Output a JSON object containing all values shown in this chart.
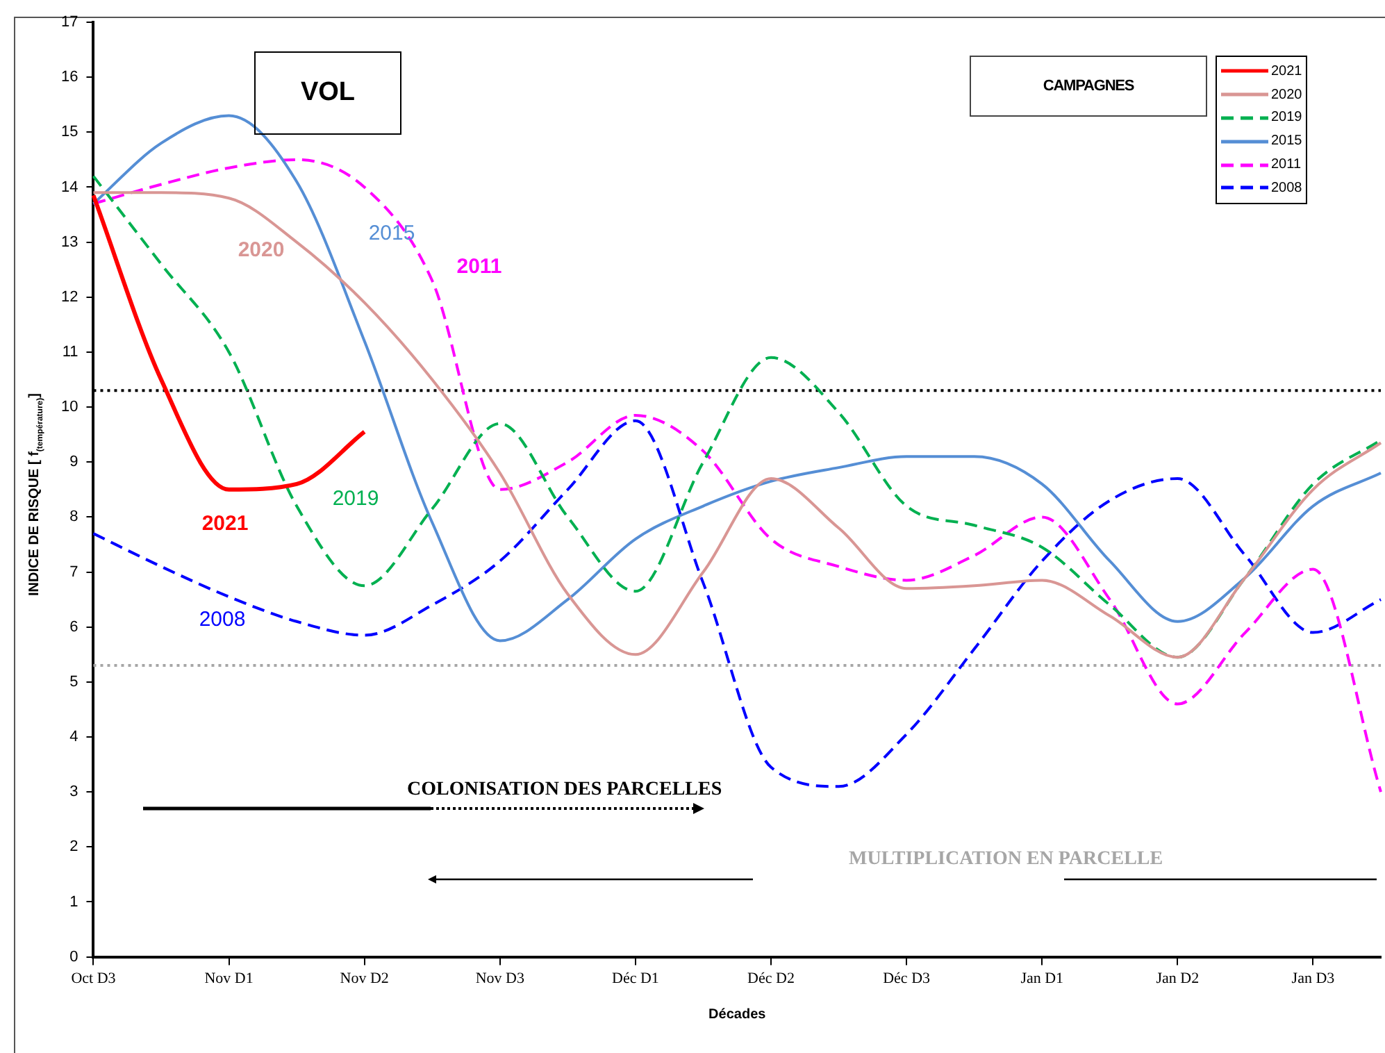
{
  "chart_data": {
    "type": "line",
    "xlabel": "Décades",
    "ylabel": "INDICE DE RISQUE [ f$_{(température)}$]",
    "legend_title": "CAMPAGNES",
    "legend": "top right",
    "grid": false,
    "marker": "none",
    "categories": [
      "Oct D3",
      null,
      "Nov D1",
      null,
      "Nov D2",
      null,
      "Nov D3",
      null,
      "Déc D1",
      null,
      "Déc D2",
      null,
      "Déc D3",
      null,
      "Jan D1",
      null,
      "Jan D2",
      null,
      "Jan D3",
      null
    ],
    "ylim": [
      0,
      17
    ],
    "yticks": [
      0,
      1,
      2,
      3,
      4,
      5,
      6,
      7,
      8,
      9,
      10,
      11,
      12,
      13,
      14,
      15,
      16,
      17
    ],
    "series": [
      {
        "name": "2021",
        "color": "#ff0000",
        "line_style": "solid",
        "values": [
          13.85,
          10.5,
          8.5,
          8.6,
          9.55,
          null,
          null,
          null,
          null,
          null,
          null,
          null,
          null,
          null,
          null,
          null,
          null,
          null,
          null,
          null
        ]
      },
      {
        "name": "2020",
        "color": "#d99694",
        "line_style": "solid",
        "values": [
          13.9,
          13.9,
          13.8,
          13.0,
          11.9,
          10.5,
          8.8,
          6.6,
          5.5,
          7.0,
          8.7,
          7.8,
          6.7,
          6.75,
          6.85,
          6.2,
          5.45,
          6.9,
          8.5,
          9.35
        ]
      },
      {
        "name": "2019",
        "color": "#00b050",
        "line_style": "dashed",
        "values": [
          14.2,
          12.6,
          11.0,
          8.2,
          6.75,
          8.15,
          9.7,
          8.0,
          6.65,
          9.0,
          10.9,
          9.9,
          8.2,
          7.85,
          7.45,
          6.4,
          5.45,
          6.9,
          8.6,
          9.4
        ]
      },
      {
        "name": "2015",
        "color": "#558ed5",
        "line_style": "solid",
        "values": [
          13.7,
          14.8,
          15.3,
          14.1,
          11.2,
          7.9,
          5.75,
          6.5,
          7.6,
          8.2,
          8.65,
          8.9,
          9.1,
          9.1,
          8.6,
          7.2,
          6.1,
          6.9,
          8.2,
          8.8
        ]
      },
      {
        "name": "2011",
        "color": "#ff00ff",
        "line_style": "dashed",
        "values": [
          13.7,
          14.05,
          14.35,
          14.5,
          14.0,
          12.3,
          8.5,
          9.0,
          9.85,
          9.2,
          7.6,
          7.1,
          6.85,
          7.3,
          8.0,
          6.5,
          4.6,
          5.9,
          7.05,
          3.0
        ]
      },
      {
        "name": "2008",
        "color": "#0000ff",
        "line_style": "dashed",
        "values": [
          7.7,
          7.1,
          6.55,
          6.1,
          5.85,
          6.4,
          7.2,
          8.5,
          9.75,
          6.8,
          3.45,
          3.1,
          4.05,
          5.6,
          7.2,
          8.3,
          8.7,
          7.3,
          5.9,
          6.5
        ]
      }
    ],
    "ref_lines": [
      {
        "axis": "y",
        "value": 10.3,
        "color": "#000000",
        "line_style": "dotted"
      },
      {
        "axis": "y",
        "value": 5.3,
        "color": "#a6a6a6",
        "line_style": "dotted"
      }
    ],
    "annotations": [
      "VOL",
      "COLONISATION DES PARCELLES",
      "MULTIPLICATION EN PARCELLE",
      "2020",
      "2015",
      "2011",
      "2021",
      "2019",
      "2008"
    ]
  }
}
